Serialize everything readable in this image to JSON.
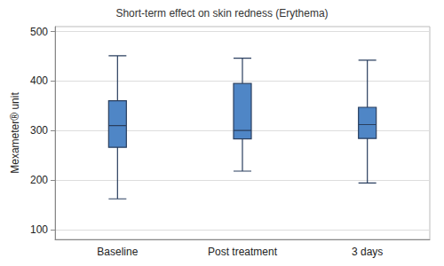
{
  "chart_data": {
    "type": "boxplot",
    "title": "Short-term effect on skin redness (Erythema)",
    "y_label": "Mexameter® unit",
    "categories": [
      "Baseline",
      "Post treatment",
      "3 days"
    ],
    "values": [
      [
        162,
        266,
        310,
        360,
        451
      ],
      [
        218,
        283,
        300,
        395,
        446
      ],
      [
        194,
        284,
        312,
        347,
        442
      ]
    ],
    "color": "#4f86c6",
    "ylim": [
      80,
      510
    ],
    "yticks": [
      100,
      200,
      300,
      400,
      500
    ],
    "grid": true
  }
}
